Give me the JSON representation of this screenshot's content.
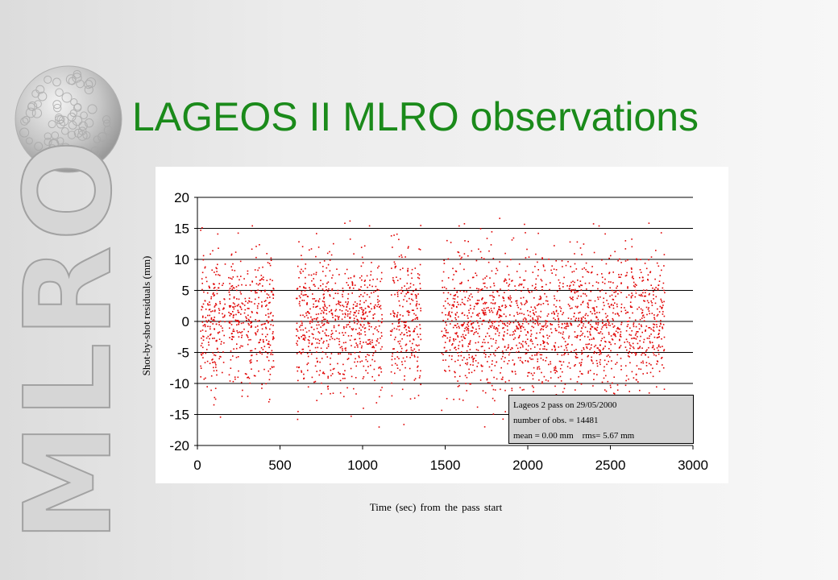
{
  "slide": {
    "title": "LAGEOS II MLRO observations",
    "logo_text": "MLRO"
  },
  "colors": {
    "title": "#1a8a1a",
    "points": "#e00000",
    "info_box": "#d4d4d4"
  },
  "info_box": {
    "line1": "Lageos 2 pass on 29/05/2000",
    "line2": "number of obs. = 14481",
    "line3": "mean = 0.00 mm    rms= 5.67 mm"
  },
  "chart_data": {
    "type": "scatter",
    "title": "",
    "xlabel": "Time (sec) from the pass start",
    "ylabel": "Shot-by-shot residuals (mm)",
    "xlim": [
      0,
      3000
    ],
    "ylim": [
      -20,
      20
    ],
    "x_ticks": [
      0,
      500,
      1000,
      1500,
      2000,
      2500,
      3000
    ],
    "y_ticks": [
      20,
      15,
      10,
      5,
      0,
      -5,
      -10,
      -15,
      -20
    ],
    "grid": "horizontal",
    "legend": "none",
    "point_color": "#e00000",
    "observation_windows": [
      [
        15,
        165
      ],
      [
        185,
        330
      ],
      [
        340,
        460
      ],
      [
        595,
        865
      ],
      [
        870,
        1115
      ],
      [
        1165,
        1350
      ],
      [
        1475,
        1675
      ],
      [
        1680,
        2145
      ],
      [
        2150,
        2565
      ],
      [
        2580,
        2825
      ]
    ],
    "n_observations": 14481,
    "mean_mm": 0.0,
    "rms_mm": 5.67
  }
}
